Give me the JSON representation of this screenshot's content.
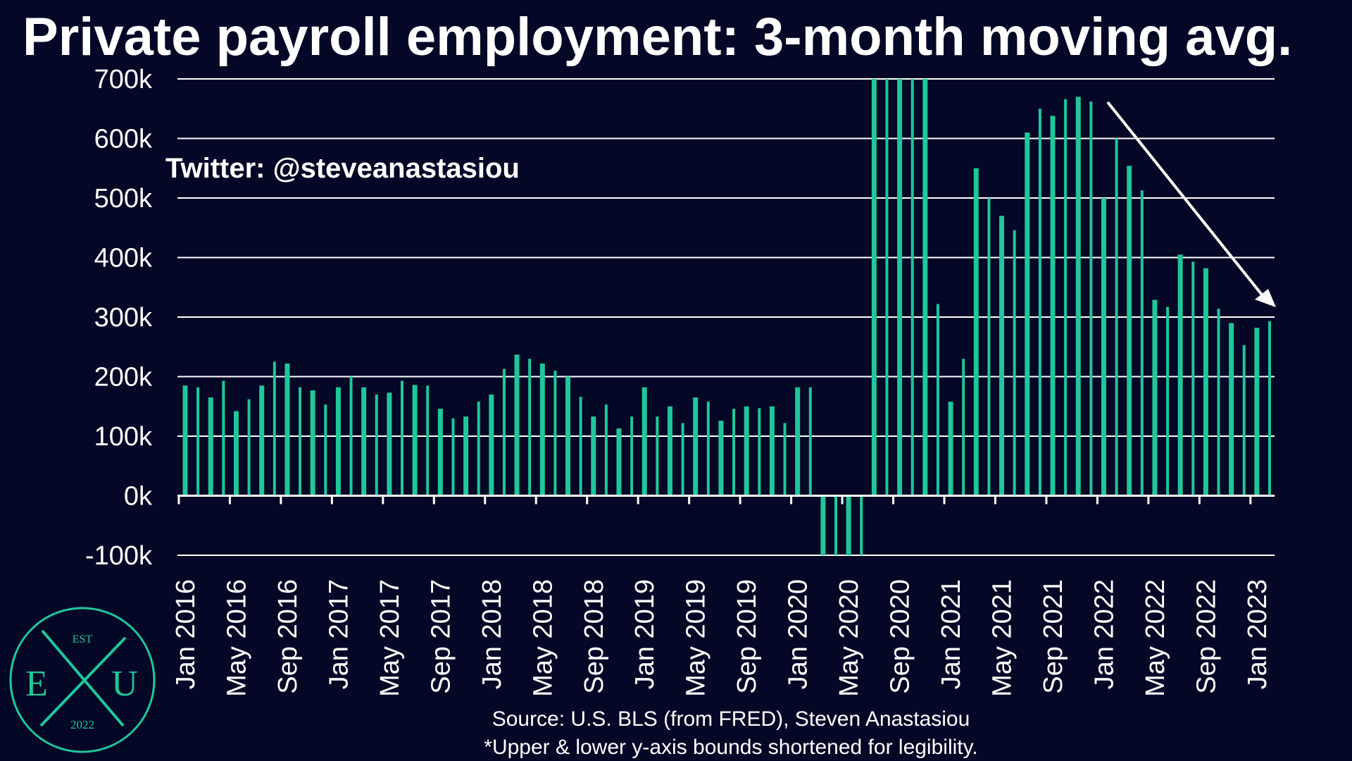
{
  "title": "Private payroll employment: 3-month moving avg.",
  "twitter_handle": "Twitter: @steveanastasiou",
  "source_line1": "Source: U.S. BLS (from FRED), Steven Anastasiou",
  "source_line2": "*Upper & lower y-axis bounds shortened for legibility.",
  "logo": {
    "top": "EST",
    "left": "E",
    "right": "U",
    "bottom": "2022",
    "center_glyph": "X"
  },
  "colors": {
    "background": "#040826",
    "bar": "#1fc79a",
    "text": "#ffffff",
    "grid": "#ffffff"
  },
  "chart_data": {
    "type": "bar",
    "title": "Private payroll employment: 3-month moving avg.",
    "xlabel": "",
    "ylabel": "",
    "ylim": [
      -100000,
      700000
    ],
    "yticks": [
      -100000,
      0,
      100000,
      200000,
      300000,
      400000,
      500000,
      600000,
      700000
    ],
    "ytick_labels": [
      "-100k",
      "0k",
      "100k",
      "200k",
      "300k",
      "400k",
      "500k",
      "600k",
      "700k"
    ],
    "xtick_labels": [
      "Jan 2016",
      "May 2016",
      "Sep 2016",
      "Jan 2017",
      "May 2017",
      "Sep 2017",
      "Jan 2018",
      "May 2018",
      "Sep 2018",
      "Jan 2019",
      "May 2019",
      "Sep 2019",
      "Jan 2020",
      "May 2020",
      "Sep 2020",
      "Jan 2021",
      "May 2021",
      "Sep 2021",
      "Jan 2022",
      "May 2022",
      "Sep 2022",
      "Jan 2023"
    ],
    "grid": true,
    "annotation": "downward trend arrow from Jan 2022 to Feb 2023",
    "categories": [
      "Jan 2016",
      "Feb 2016",
      "Mar 2016",
      "Apr 2016",
      "May 2016",
      "Jun 2016",
      "Jul 2016",
      "Aug 2016",
      "Sep 2016",
      "Oct 2016",
      "Nov 2016",
      "Dec 2016",
      "Jan 2017",
      "Feb 2017",
      "Mar 2017",
      "Apr 2017",
      "May 2017",
      "Jun 2017",
      "Jul 2017",
      "Aug 2017",
      "Sep 2017",
      "Oct 2017",
      "Nov 2017",
      "Dec 2017",
      "Jan 2018",
      "Feb 2018",
      "Mar 2018",
      "Apr 2018",
      "May 2018",
      "Jun 2018",
      "Jul 2018",
      "Aug 2018",
      "Sep 2018",
      "Oct 2018",
      "Nov 2018",
      "Dec 2018",
      "Jan 2019",
      "Feb 2019",
      "Mar 2019",
      "Apr 2019",
      "May 2019",
      "Jun 2019",
      "Jul 2019",
      "Aug 2019",
      "Sep 2019",
      "Oct 2019",
      "Nov 2019",
      "Dec 2019",
      "Jan 2020",
      "Feb 2020",
      "Mar 2020",
      "Apr 2020",
      "May 2020",
      "Jun 2020",
      "Jul 2020",
      "Aug 2020",
      "Sep 2020",
      "Oct 2020",
      "Nov 2020",
      "Dec 2020",
      "Jan 2021",
      "Feb 2021",
      "Mar 2021",
      "Apr 2021",
      "May 2021",
      "Jun 2021",
      "Jul 2021",
      "Aug 2021",
      "Sep 2021",
      "Oct 2021",
      "Nov 2021",
      "Dec 2021",
      "Jan 2022",
      "Feb 2022",
      "Mar 2022",
      "Apr 2022",
      "May 2022",
      "Jun 2022",
      "Jul 2022",
      "Aug 2022",
      "Sep 2022",
      "Oct 2022",
      "Nov 2022",
      "Dec 2022",
      "Jan 2023",
      "Feb 2023"
    ],
    "values": [
      185000,
      182000,
      165000,
      193000,
      142000,
      162000,
      185000,
      225000,
      222000,
      182000,
      177000,
      153000,
      182000,
      200000,
      182000,
      170000,
      173000,
      193000,
      186000,
      185000,
      146000,
      130000,
      133000,
      158000,
      170000,
      213000,
      237000,
      230000,
      222000,
      210000,
      200000,
      166000,
      133000,
      153000,
      113000,
      133000,
      182000,
      133000,
      150000,
      122000,
      165000,
      158000,
      126000,
      146000,
      150000,
      147000,
      150000,
      122000,
      182000,
      182000,
      -100000,
      -100000,
      -100000,
      -100000,
      700000,
      700000,
      700000,
      700000,
      700000,
      322000,
      158000,
      230000,
      550000,
      500000,
      470000,
      446000,
      610000,
      650000,
      638000,
      666000,
      670000,
      662000,
      500000,
      600000,
      554000,
      513000,
      329000,
      317000,
      405000,
      393000,
      382000,
      314000,
      290000,
      253000,
      282000,
      293000
    ]
  }
}
